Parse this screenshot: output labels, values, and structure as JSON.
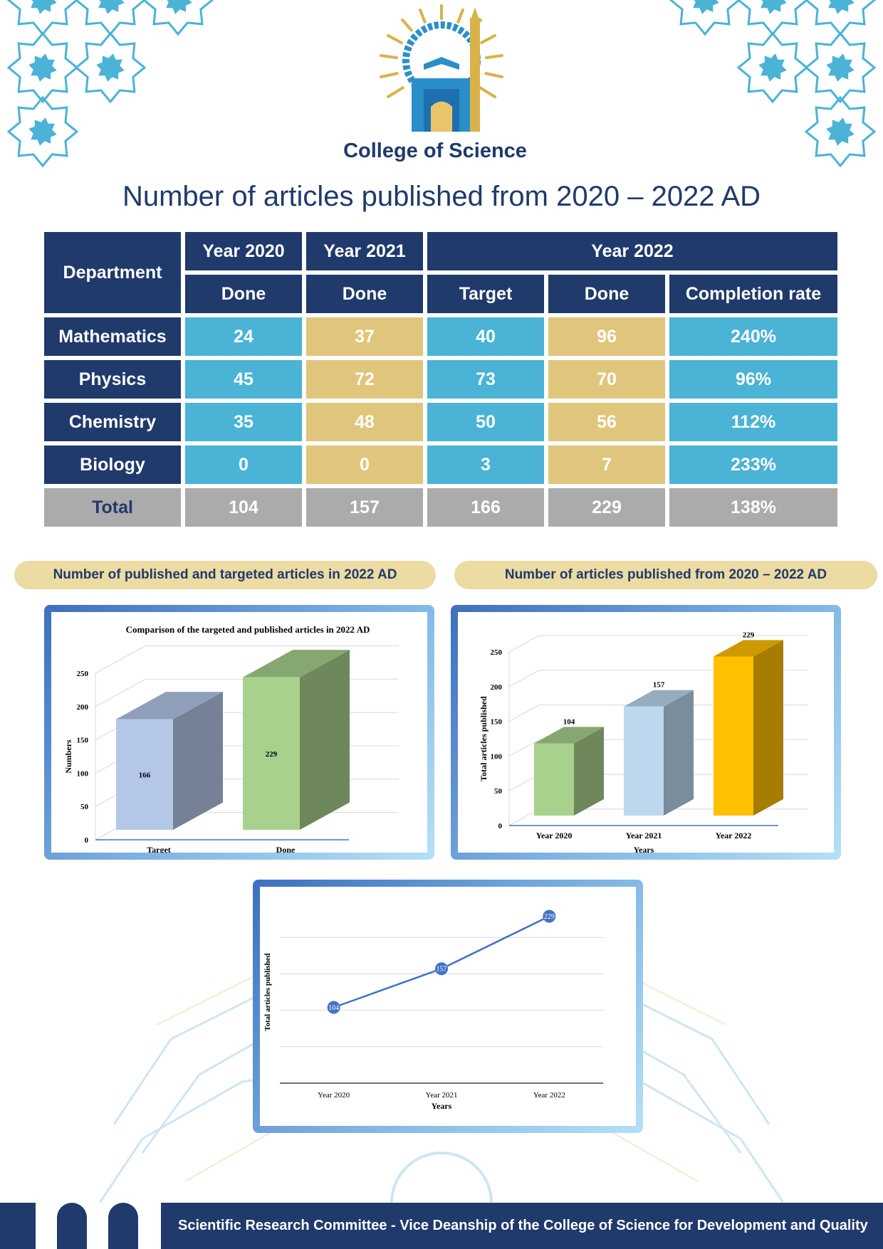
{
  "header": {
    "college_name": "College of Science",
    "title": "Number of articles published from 2020 – 2022 AD"
  },
  "table": {
    "department_label": "Department",
    "year_2020": "Year 2020",
    "year_2021": "Year 2021",
    "year_2022": "Year 2022",
    "sub_done_2020": "Done",
    "sub_done_2021": "Done",
    "sub_target_2022": "Target",
    "sub_done_2022": "Done",
    "sub_rate_2022": "Completion rate",
    "rows": [
      {
        "department": "Mathematics",
        "done_2020": "24",
        "done_2021": "37",
        "target_2022": "40",
        "done_2022": "96",
        "rate_2022": "240%"
      },
      {
        "department": "Physics",
        "done_2020": "45",
        "done_2021": "72",
        "target_2022": "73",
        "done_2022": "70",
        "rate_2022": "96%"
      },
      {
        "department": "Chemistry",
        "done_2020": "35",
        "done_2021": "48",
        "target_2022": "50",
        "done_2022": "56",
        "rate_2022": "112%"
      },
      {
        "department": "Biology",
        "done_2020": "0",
        "done_2021": "0",
        "target_2022": "3",
        "done_2022": "7",
        "rate_2022": "233%"
      }
    ],
    "total": {
      "label": "Total",
      "done_2020": "104",
      "done_2021": "157",
      "target_2022": "166",
      "done_2022": "229",
      "rate_2022": "138%"
    }
  },
  "section_labels": {
    "left": "Number of published and targeted articles in 2022 AD",
    "right": "Number of articles published from 2020 – 2022 AD"
  },
  "footer": {
    "text": "Scientific Research Committee - Vice Deanship of the College of Science for Development and Quality"
  },
  "colors": {
    "navy": "#1f3a6b",
    "blue": "#4ab3d6",
    "gold": "#dfc67c",
    "grey": "#ababab"
  },
  "chart_data": [
    {
      "type": "bar",
      "title": "Comparison of the targeted and published articles in 2022 AD",
      "categories": [
        "Target",
        "Done"
      ],
      "values": [
        166,
        229
      ],
      "data_labels": [
        "166",
        "229"
      ],
      "colors": [
        "#b4c7e7",
        "#a9d18e"
      ],
      "ylabel": "Numbers",
      "xlabel": "",
      "ylim": [
        0,
        250
      ],
      "yticks": [
        0,
        50,
        100,
        150,
        200,
        250
      ],
      "grid": true
    },
    {
      "type": "bar",
      "title": "",
      "categories": [
        "Year 2020",
        "Year 2021",
        "Year 2022"
      ],
      "values": [
        104,
        157,
        229
      ],
      "data_labels": [
        "104",
        "157",
        "229"
      ],
      "colors": [
        "#a9d18e",
        "#bdd7ee",
        "#ffc000"
      ],
      "ylabel": "Total articles published",
      "xlabel": "Years",
      "ylim": [
        0,
        250
      ],
      "yticks": [
        0,
        50,
        100,
        150,
        200,
        250
      ],
      "grid": true
    },
    {
      "type": "line",
      "title": "",
      "categories": [
        "Year 2020",
        "Year 2021",
        "Year 2022"
      ],
      "values": [
        104,
        157,
        229
      ],
      "data_labels": [
        "104",
        "157",
        "229"
      ],
      "color": "#4472c4",
      "ylabel": "Total articles published",
      "xlabel": "Years",
      "ylim": [
        0,
        250
      ],
      "grid": true
    }
  ]
}
